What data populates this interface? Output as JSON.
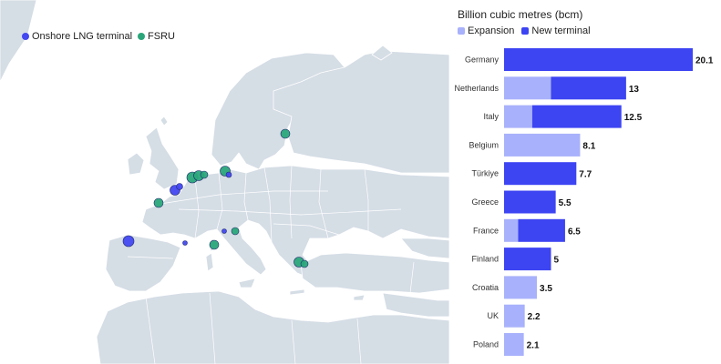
{
  "map": {
    "legend": [
      {
        "label": "Onshore LNG terminal",
        "color": "#4348f0"
      },
      {
        "label": "FSRU",
        "color": "#2aa67a"
      }
    ]
  },
  "chart_data": {
    "type": "bar",
    "title": "Billion cubic metres (bcm)",
    "legend": [
      {
        "label": "Expansion",
        "color": "#a8b1fb"
      },
      {
        "label": "New terminal",
        "color": "#3d44f2"
      }
    ],
    "categories": [
      "Germany",
      "Netherlands",
      "Italy",
      "Belgium",
      "Türkiye",
      "Greece",
      "France",
      "Finland",
      "Croatia",
      "UK",
      "Poland"
    ],
    "series": [
      {
        "name": "Expansion",
        "values": [
          0,
          5,
          3,
          8.1,
          0,
          0,
          1.5,
          0,
          3.5,
          2.2,
          2.1
        ]
      },
      {
        "name": "New terminal",
        "values": [
          20.1,
          8,
          9.5,
          0,
          7.7,
          5.5,
          5,
          5,
          0,
          0,
          0
        ]
      }
    ],
    "totals": [
      "20.1",
      "13",
      "12.5",
      "8.1",
      "7.7",
      "5.5",
      "6.5",
      "5",
      "3.5",
      "2.2",
      "2.1"
    ]
  }
}
